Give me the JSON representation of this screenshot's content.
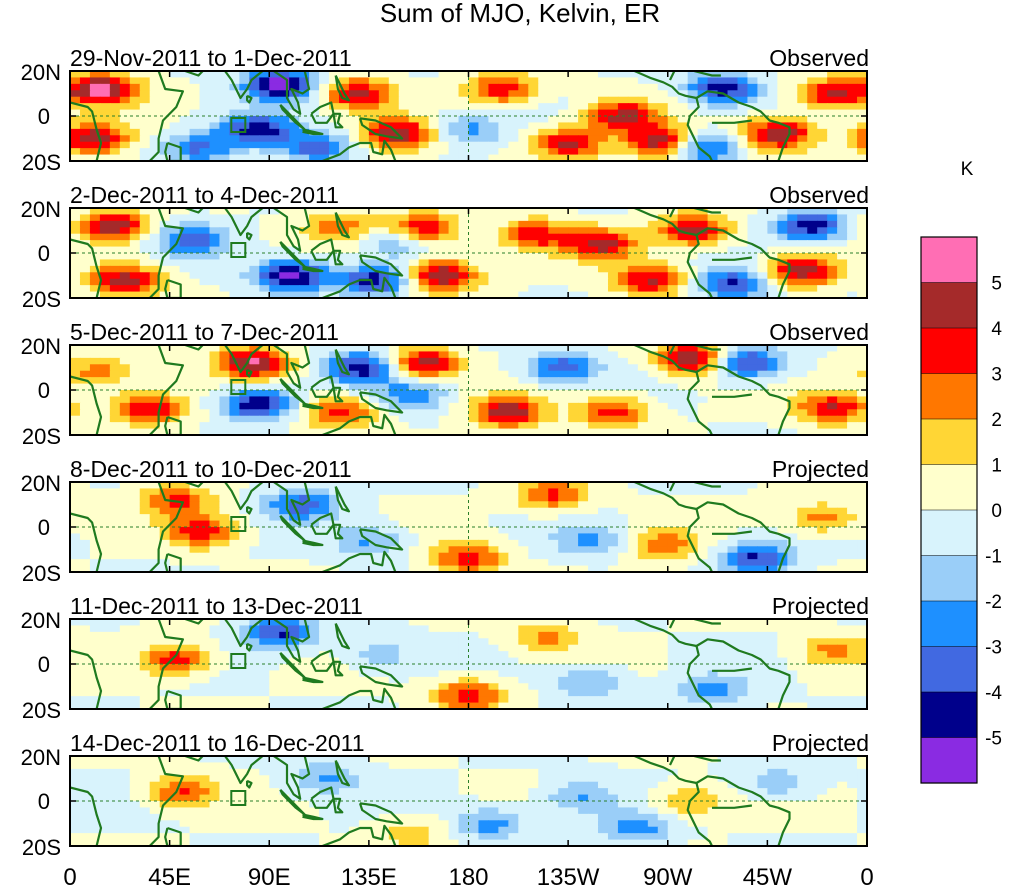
{
  "chart_data": {
    "type": "heatmap",
    "title": "Sum of MJO, Kelvin, ER",
    "units": "K",
    "x_tick_labels": [
      "0",
      "45E",
      "90E",
      "135E",
      "180",
      "135W",
      "90W",
      "45W",
      "0"
    ],
    "y_tick_labels": [
      "20N",
      "0",
      "20S"
    ],
    "x_range_deg_east": [
      0,
      360
    ],
    "y_range_deg": [
      -20,
      20
    ],
    "colorbar": {
      "levels": [
        -5,
        -4,
        -3,
        -2,
        -1,
        0,
        1,
        2,
        3,
        4,
        5
      ],
      "labels": [
        "5",
        "4",
        "3",
        "2",
        "1",
        "0",
        "-1",
        "-2",
        "-3",
        "-4",
        "-5"
      ],
      "colors": [
        "#8A2BE2",
        "#00008B",
        "#4169E1",
        "#1E90FF",
        "#9ACEF8",
        "#D8F3FC",
        "#FFFFCC",
        "#FFD635",
        "#FF7700",
        "#FF0000",
        "#A52A2A",
        "#FF6EB4"
      ]
    },
    "panels": [
      {
        "date_range": "29-Nov-2011 to 1-Dec-2011",
        "status": "Observed",
        "anomalies": [
          {
            "lon": 95,
            "lat": 14,
            "value": -5.6
          },
          {
            "lon": 85,
            "lat": -6,
            "value": -4.4
          },
          {
            "lon": 15,
            "lat": 12,
            "value": 5.5
          },
          {
            "lon": 10,
            "lat": -10,
            "value": 4.6
          },
          {
            "lon": 130,
            "lat": 10,
            "value": 4.2
          },
          {
            "lon": 148,
            "lat": -8,
            "value": 4.8
          },
          {
            "lon": 195,
            "lat": 12,
            "value": 3.6
          },
          {
            "lon": 225,
            "lat": -12,
            "value": 4.2
          },
          {
            "lon": 250,
            "lat": 0,
            "value": 4.4
          },
          {
            "lon": 268,
            "lat": -12,
            "value": 5.2
          },
          {
            "lon": 295,
            "lat": 12,
            "value": -4.6
          },
          {
            "lon": 320,
            "lat": -8,
            "value": 5.2
          },
          {
            "lon": 345,
            "lat": 10,
            "value": 4.2
          },
          {
            "lon": 180,
            "lat": -6,
            "value": -2.2
          },
          {
            "lon": 58,
            "lat": -14,
            "value": -3.2
          },
          {
            "lon": 112,
            "lat": -14,
            "value": -3.6
          },
          {
            "lon": 285,
            "lat": -14,
            "value": -4.2
          }
        ]
      },
      {
        "date_range": "2-Dec-2011 to 4-Dec-2011",
        "status": "Observed",
        "anomalies": [
          {
            "lon": 100,
            "lat": -10,
            "value": -5.6
          },
          {
            "lon": 20,
            "lat": 12,
            "value": 4.6
          },
          {
            "lon": 25,
            "lat": -12,
            "value": 4.6
          },
          {
            "lon": 55,
            "lat": 6,
            "value": -3.6
          },
          {
            "lon": 158,
            "lat": 10,
            "value": 5.2
          },
          {
            "lon": 168,
            "lat": -10,
            "value": 5.2
          },
          {
            "lon": 210,
            "lat": 8,
            "value": 3.6
          },
          {
            "lon": 240,
            "lat": 4,
            "value": 4.2
          },
          {
            "lon": 282,
            "lat": 10,
            "value": 4.6
          },
          {
            "lon": 262,
            "lat": -12,
            "value": 4.2
          },
          {
            "lon": 335,
            "lat": 12,
            "value": -4.6
          },
          {
            "lon": 330,
            "lat": -8,
            "value": 4.6
          },
          {
            "lon": 138,
            "lat": -12,
            "value": -4.6
          },
          {
            "lon": 150,
            "lat": 6,
            "value": -3.2
          },
          {
            "lon": 300,
            "lat": -14,
            "value": -4.2
          },
          {
            "lon": 122,
            "lat": 12,
            "value": 2.6
          }
        ]
      },
      {
        "date_range": "5-Dec-2011 to 7-Dec-2011",
        "status": "Observed",
        "anomalies": [
          {
            "lon": 85,
            "lat": -6,
            "value": -5.2
          },
          {
            "lon": 82,
            "lat": 12,
            "value": 5.2
          },
          {
            "lon": 35,
            "lat": -8,
            "value": 4.2
          },
          {
            "lon": 132,
            "lat": 10,
            "value": -4.6
          },
          {
            "lon": 160,
            "lat": 12,
            "value": 4.6
          },
          {
            "lon": 122,
            "lat": -10,
            "value": 3.6
          },
          {
            "lon": 198,
            "lat": -10,
            "value": 4.6
          },
          {
            "lon": 245,
            "lat": -10,
            "value": 3.6
          },
          {
            "lon": 282,
            "lat": 14,
            "value": 5.2
          },
          {
            "lon": 305,
            "lat": 12,
            "value": -4.6
          },
          {
            "lon": 345,
            "lat": -8,
            "value": 4.2
          },
          {
            "lon": 222,
            "lat": 10,
            "value": -3.6
          },
          {
            "lon": 12,
            "lat": 8,
            "value": 2.6
          },
          {
            "lon": 155,
            "lat": -2,
            "value": -2.6
          }
        ]
      },
      {
        "date_range": "8-Dec-2011 to 10-Dec-2011",
        "status": "Projected",
        "anomalies": [
          {
            "lon": 60,
            "lat": -2,
            "value": 3.6
          },
          {
            "lon": 48,
            "lat": 12,
            "value": 3.2
          },
          {
            "lon": 105,
            "lat": 10,
            "value": -3.6
          },
          {
            "lon": 180,
            "lat": -14,
            "value": 3.6
          },
          {
            "lon": 218,
            "lat": 14,
            "value": 3.2
          },
          {
            "lon": 310,
            "lat": -14,
            "value": -4.2
          },
          {
            "lon": 340,
            "lat": 4,
            "value": 2.6
          },
          {
            "lon": 268,
            "lat": -8,
            "value": 2.6
          },
          {
            "lon": 235,
            "lat": -6,
            "value": -2.2
          },
          {
            "lon": 135,
            "lat": -6,
            "value": -2.2
          }
        ]
      },
      {
        "date_range": "11-Dec-2011 to 13-Dec-2011",
        "status": "Projected",
        "anomalies": [
          {
            "lon": 48,
            "lat": 2,
            "value": 3.6
          },
          {
            "lon": 95,
            "lat": 14,
            "value": -4.2
          },
          {
            "lon": 180,
            "lat": -14,
            "value": 3.6
          },
          {
            "lon": 215,
            "lat": 12,
            "value": 2.2
          },
          {
            "lon": 235,
            "lat": -8,
            "value": -2.2
          },
          {
            "lon": 290,
            "lat": -12,
            "value": -2.6
          },
          {
            "lon": 345,
            "lat": 6,
            "value": 2.2
          },
          {
            "lon": 140,
            "lat": 4,
            "value": -1.6
          }
        ]
      },
      {
        "date_range": "14-Dec-2011 to 16-Dec-2011",
        "status": "Projected",
        "anomalies": [
          {
            "lon": 50,
            "lat": 4,
            "value": 3.2
          },
          {
            "lon": 190,
            "lat": -10,
            "value": -2.6
          },
          {
            "lon": 230,
            "lat": 2,
            "value": -2.2
          },
          {
            "lon": 255,
            "lat": -12,
            "value": -2.6
          },
          {
            "lon": 280,
            "lat": 0,
            "value": 2.2
          },
          {
            "lon": 115,
            "lat": 10,
            "value": -2.2
          },
          {
            "lon": 320,
            "lat": 8,
            "value": -1.8
          },
          {
            "lon": 155,
            "lat": -14,
            "value": 1.6
          }
        ]
      }
    ]
  }
}
